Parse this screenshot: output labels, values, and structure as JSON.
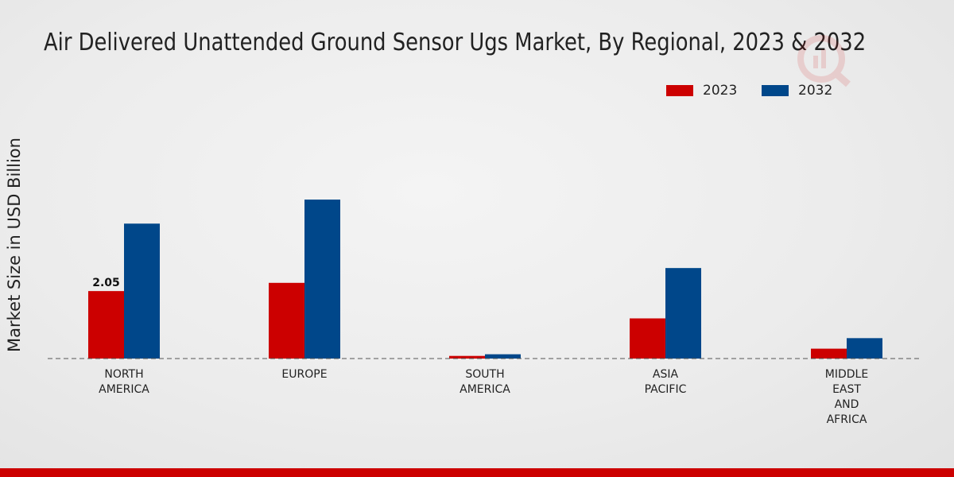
{
  "chart_data": {
    "type": "bar",
    "title": "Air Delivered Unattended Ground Sensor Ugs Market, By Regional, 2023 & 2032",
    "ylabel": "Market Size in USD Billion",
    "xlabel": "",
    "categories": [
      [
        "NORTH",
        "AMERICA"
      ],
      [
        "EUROPE"
      ],
      [
        "SOUTH",
        "AMERICA"
      ],
      [
        "ASIA",
        "PACIFIC"
      ],
      [
        "MIDDLE",
        "EAST",
        "AND",
        "AFRICA"
      ]
    ],
    "series": [
      {
        "name": "2023",
        "color": "#cc0000",
        "values": [
          2.05,
          2.3,
          0.08,
          1.22,
          0.3
        ]
      },
      {
        "name": "2032",
        "color": "#00478a",
        "values": [
          4.1,
          4.83,
          0.13,
          2.75,
          0.62
        ]
      }
    ],
    "data_labels": [
      {
        "series": 0,
        "index": 0,
        "text": "2.05"
      }
    ],
    "ylim": [
      0,
      8.6
    ],
    "grid": false,
    "legend_position": "top-right"
  },
  "footer_color": "#cc0000"
}
